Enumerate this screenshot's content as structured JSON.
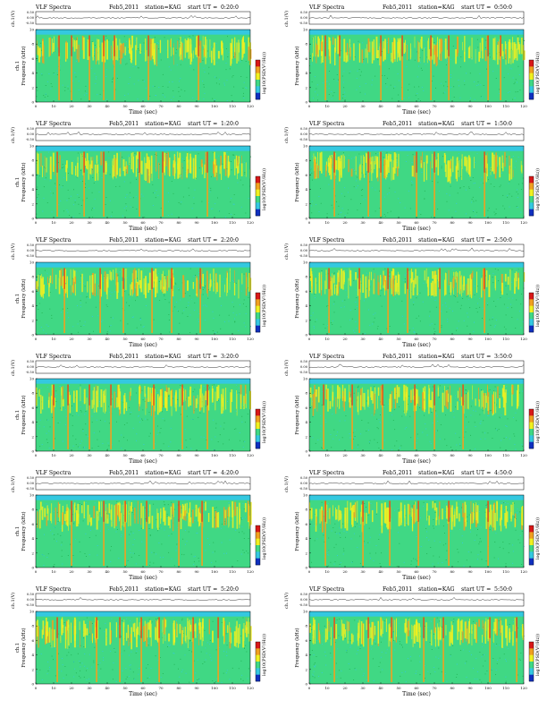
{
  "header": {
    "title": "VLF Spectra",
    "date": "Feb5,2011",
    "station": "station=KAG",
    "start_prefix": "start UT ="
  },
  "colors": {
    "background": "#40d884",
    "green": "#40d884",
    "cyan": "#34c8e0",
    "yellow": "#f0f020",
    "orange": "#f0a020",
    "red": "#d81818",
    "blue": "#1030c0"
  },
  "chart_data": [
    {
      "type": "heatmap",
      "start_ut": "0:20:0",
      "channel_label": "ch.1(V)",
      "ylabel": "Frequency (kHz)",
      "xlabel": "Time (sec)",
      "colorbar_label": "log10(PSD(V²/Hz))",
      "x_ticks": [
        "0",
        "10",
        "20",
        "30",
        "40",
        "50",
        "60",
        "70",
        "80",
        "90",
        "100",
        "110",
        "120"
      ],
      "y_ticks": [
        "0",
        "2",
        "4",
        "6",
        "8",
        "10"
      ],
      "amp_ticks": [
        "0.50",
        "0.00",
        "-0.50"
      ],
      "xlim": [
        0,
        120
      ],
      "ylim": [
        0,
        10
      ],
      "bursts": [
        13,
        20,
        30,
        38,
        44,
        63,
        91
      ]
    },
    {
      "type": "heatmap",
      "start_ut": "0:50:0",
      "channel_label": "ch.1(V)",
      "ylabel": "Frequency (kHz)",
      "xlabel": "Time (sec)",
      "colorbar_label": "log10(PSD(V²/Hz))",
      "x_ticks": [
        "0",
        "10",
        "20",
        "30",
        "40",
        "50",
        "60",
        "70",
        "80",
        "90",
        "100",
        "110",
        "120"
      ],
      "y_ticks": [
        "0",
        "2",
        "4",
        "6",
        "8",
        "10"
      ],
      "amp_ticks": [
        "0.50",
        "0.00",
        "-0.50"
      ],
      "xlim": [
        0,
        120
      ],
      "ylim": [
        0,
        10
      ],
      "bursts": [
        9,
        17,
        40,
        52,
        68,
        78,
        100,
        107
      ]
    },
    {
      "type": "heatmap",
      "start_ut": "1:20:0",
      "channel_label": "ch.1(V)",
      "ylabel": "Frequency (kHz)",
      "xlabel": "Time (sec)",
      "colorbar_label": "log10(PSD(V²/Hz))",
      "x_ticks": [
        "0",
        "10",
        "20",
        "30",
        "40",
        "50",
        "60",
        "70",
        "80",
        "90",
        "100",
        "110",
        "120"
      ],
      "y_ticks": [
        "0",
        "2",
        "4",
        "6",
        "8",
        "10"
      ],
      "amp_ticks": [
        "0.50",
        "0.00",
        "-0.50"
      ],
      "xlim": [
        0,
        120
      ],
      "ylim": [
        0,
        10
      ],
      "bursts": [
        12,
        27,
        38,
        58,
        71,
        96
      ]
    },
    {
      "type": "heatmap",
      "start_ut": "1:50:0",
      "channel_label": "ch.1(V)",
      "ylabel": "Frequency (kHz)",
      "xlabel": "Time (sec)",
      "colorbar_label": "log10(PSD(V²/Hz))",
      "x_ticks": [
        "0",
        "10",
        "20",
        "30",
        "40",
        "50",
        "60",
        "70",
        "80",
        "90",
        "100",
        "110",
        "120"
      ],
      "y_ticks": [
        "0",
        "2",
        "4",
        "6",
        "8",
        "10"
      ],
      "amp_ticks": [
        "0.50",
        "0.00",
        "-0.50"
      ],
      "xlim": [
        0,
        120
      ],
      "ylim": [
        0,
        10
      ],
      "bursts": [
        14,
        33,
        40,
        60,
        70,
        98
      ]
    },
    {
      "type": "heatmap",
      "start_ut": "2:20:0",
      "channel_label": "ch.1(V)",
      "ylabel": "Frequency (kHz)",
      "xlabel": "Time (sec)",
      "colorbar_label": "log10(PSD(V²/Hz))",
      "x_ticks": [
        "0",
        "10",
        "20",
        "30",
        "40",
        "50",
        "60",
        "70",
        "80",
        "90",
        "100",
        "110",
        "120"
      ],
      "y_ticks": [
        "0",
        "2",
        "4",
        "6",
        "8",
        "10"
      ],
      "amp_ticks": [
        "0.50",
        "0.00",
        "-0.50"
      ],
      "xlim": [
        0,
        120
      ],
      "ylim": [
        0,
        10
      ],
      "bursts": [
        16,
        36,
        49,
        65,
        76,
        92
      ]
    },
    {
      "type": "heatmap",
      "start_ut": "2:50:0",
      "channel_label": "ch.1(V)",
      "ylabel": "Frequency (kHz)",
      "xlabel": "Time (sec)",
      "colorbar_label": "log10(PSD(V²/Hz))",
      "x_ticks": [
        "0",
        "10",
        "20",
        "30",
        "40",
        "50",
        "60",
        "70",
        "80",
        "90",
        "100",
        "110",
        "120"
      ],
      "y_ticks": [
        "0",
        "2",
        "4",
        "6",
        "8",
        "10"
      ],
      "amp_ticks": [
        "0.50",
        "0.00",
        "-0.50"
      ],
      "xlim": [
        0,
        120
      ],
      "ylim": [
        0,
        10
      ],
      "bursts": [
        11,
        28,
        44,
        55,
        73,
        98
      ]
    },
    {
      "type": "heatmap",
      "start_ut": "3:20:0",
      "channel_label": "ch.1(V)",
      "ylabel": "Frequency (kHz)",
      "xlabel": "Time (sec)",
      "colorbar_label": "log10(PSD(V²/Hz))",
      "x_ticks": [
        "0",
        "10",
        "20",
        "30",
        "40",
        "50",
        "60",
        "70",
        "80",
        "90",
        "100",
        "110",
        "120"
      ],
      "y_ticks": [
        "0",
        "2",
        "4",
        "6",
        "8",
        "10"
      ],
      "amp_ticks": [
        "0.50",
        "0.00",
        "-0.50"
      ],
      "xlim": [
        0,
        120
      ],
      "ylim": [
        0,
        10
      ],
      "bursts": [
        10,
        18,
        30,
        42,
        66,
        82,
        96
      ]
    },
    {
      "type": "heatmap",
      "start_ut": "3:50:0",
      "channel_label": "ch.1(V)",
      "ylabel": "Frequency (kHz)",
      "xlabel": "Time (sec)",
      "colorbar_label": "log10(PSD(V²/Hz))",
      "x_ticks": [
        "0",
        "10",
        "20",
        "30",
        "40",
        "50",
        "60",
        "70",
        "80",
        "90",
        "100",
        "110",
        "120"
      ],
      "y_ticks": [
        "0",
        "2",
        "4",
        "6",
        "8",
        "10"
      ],
      "amp_ticks": [
        "0.50",
        "0.00",
        "-0.50"
      ],
      "xlim": [
        0,
        120
      ],
      "ylim": [
        0,
        10
      ],
      "bursts": [
        8,
        24,
        41,
        59,
        70,
        86
      ]
    },
    {
      "type": "heatmap",
      "start_ut": "4:20:0",
      "channel_label": "ch.1(V)",
      "ylabel": "Frequency (kHz)",
      "xlabel": "Time (sec)",
      "colorbar_label": "log10(PSD(V²/Hz))",
      "x_ticks": [
        "0",
        "10",
        "20",
        "30",
        "40",
        "50",
        "60",
        "70",
        "80",
        "90",
        "100",
        "110",
        "120"
      ],
      "y_ticks": [
        "0",
        "2",
        "4",
        "6",
        "8",
        "10"
      ],
      "amp_ticks": [
        "0.50",
        "0.00",
        "-0.50"
      ],
      "xlim": [
        0,
        120
      ],
      "ylim": [
        0,
        10
      ],
      "bursts": [
        20,
        38,
        50,
        62,
        80,
        93
      ]
    },
    {
      "type": "heatmap",
      "start_ut": "4:50:0",
      "channel_label": "ch.1(V)",
      "ylabel": "Frequency (kHz)",
      "xlabel": "Time (sec)",
      "colorbar_label": "log10(PSD(V²/Hz))",
      "x_ticks": [
        "0",
        "10",
        "20",
        "30",
        "40",
        "50",
        "60",
        "70",
        "80",
        "90",
        "100",
        "110",
        "120"
      ],
      "y_ticks": [
        "0",
        "2",
        "4",
        "6",
        "8",
        "10"
      ],
      "amp_ticks": [
        "0.50",
        "0.00",
        "-0.50"
      ],
      "xlim": [
        0,
        120
      ],
      "ylim": [
        0,
        10
      ],
      "bursts": [
        9,
        30,
        45,
        61,
        78,
        100
      ]
    },
    {
      "type": "heatmap",
      "start_ut": "5:20:0",
      "channel_label": "ch.1(V)",
      "ylabel": "Frequency (kHz)",
      "xlabel": "Time (sec)",
      "colorbar_label": "log10(PSD(V²/Hz))",
      "x_ticks": [
        "0",
        "10",
        "20",
        "30",
        "40",
        "50",
        "60",
        "70",
        "80",
        "90",
        "100",
        "110",
        "120"
      ],
      "y_ticks": [
        "0",
        "2",
        "4",
        "6",
        "8",
        "10"
      ],
      "amp_ticks": [
        "0.50",
        "0.00",
        "-0.50"
      ],
      "xlim": [
        0,
        120
      ],
      "ylim": [
        0,
        10
      ],
      "bursts": [
        12,
        34,
        47,
        59,
        69,
        88,
        102
      ]
    },
    {
      "type": "heatmap",
      "start_ut": "5:50:0",
      "channel_label": "ch.1(V)",
      "ylabel": "Frequency (kHz)",
      "xlabel": "Time (sec)",
      "colorbar_label": "log10(PSD(V²/Hz))",
      "x_ticks": [
        "0",
        "10",
        "20",
        "30",
        "40",
        "50",
        "60",
        "70",
        "80",
        "90",
        "100",
        "110",
        "120"
      ],
      "y_ticks": [
        "0",
        "2",
        "4",
        "6",
        "8",
        "10"
      ],
      "amp_ticks": [
        "0.50",
        "0.00",
        "-0.50"
      ],
      "xlim": [
        0,
        120
      ],
      "ylim": [
        0,
        10
      ],
      "bursts": [
        14,
        33,
        46,
        64,
        75,
        101,
        116
      ]
    }
  ]
}
